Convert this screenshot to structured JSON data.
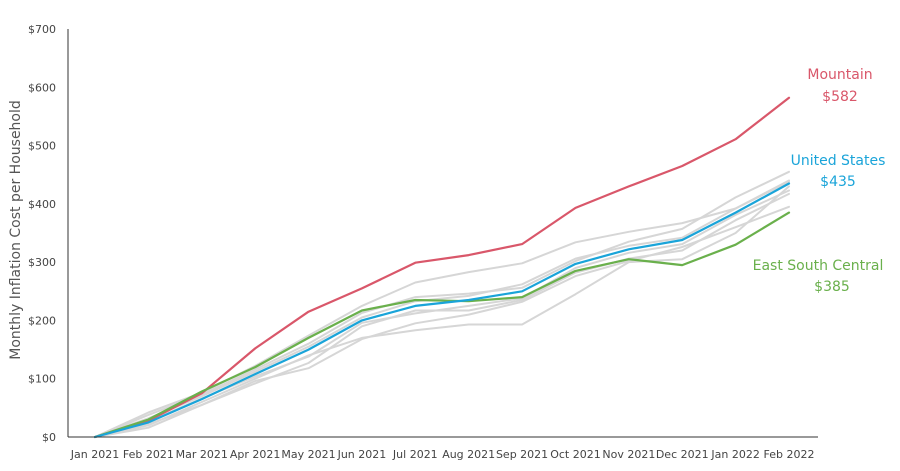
{
  "chart_data": {
    "type": "line",
    "title": "",
    "xlabel": "",
    "ylabel": "Monthly Inflation Cost per Household",
    "ylim": [
      0,
      700
    ],
    "yticks": [
      0,
      100,
      200,
      300,
      400,
      500,
      600,
      700
    ],
    "ytick_labels": [
      "$0",
      "$100",
      "$200",
      "$300",
      "$400",
      "$500",
      "$600",
      "$700"
    ],
    "grid": false,
    "categories": [
      "Jan 2021",
      "Feb 2021",
      "Mar 2021",
      "Apr 2021",
      "May 2021",
      "Jun 2021",
      "Jul 2021",
      "Aug 2021",
      "Sep 2021",
      "Oct 2021",
      "Nov 2021",
      "Dec 2021",
      "Jan 2022",
      "Feb 2022"
    ],
    "colors": {
      "mountain": "#d9576a",
      "united_states": "#1aa4d9",
      "east_south_central": "#6ab04c",
      "other_regions": "#d6d6d6",
      "axis": "#333333"
    },
    "highlighted": [
      {
        "key": "mountain",
        "label_name": "Mountain",
        "label_value": "$582",
        "values": [
          0,
          28,
          75,
          152,
          215,
          255,
          299,
          312,
          331,
          393,
          430,
          465,
          511,
          582
        ]
      },
      {
        "key": "united_states",
        "label_name": "United States",
        "label_value": "$435",
        "values": [
          0,
          25,
          65,
          108,
          150,
          200,
          225,
          235,
          250,
          297,
          322,
          338,
          385,
          435
        ]
      },
      {
        "key": "east_south_central",
        "label_name": "East South Central",
        "label_value": "$385",
        "values": [
          0,
          30,
          78,
          120,
          170,
          217,
          235,
          233,
          240,
          285,
          305,
          295,
          330,
          385
        ]
      }
    ],
    "other_series": [
      {
        "values": [
          0,
          38,
          73,
          116,
          160,
          213,
          240,
          246,
          256,
          302,
          335,
          357,
          411,
          455
        ]
      },
      {
        "values": [
          0,
          42,
          76,
          122,
          174,
          225,
          265,
          283,
          298,
          334,
          352,
          367,
          392,
          440
        ]
      },
      {
        "values": [
          0,
          32,
          70,
          112,
          155,
          205,
          233,
          242,
          262,
          306,
          328,
          342,
          392,
          438
        ]
      },
      {
        "values": [
          0,
          22,
          55,
          92,
          127,
          190,
          217,
          217,
          235,
          282,
          306,
          320,
          372,
          417
        ]
      },
      {
        "values": [
          0,
          16,
          55,
          96,
          118,
          168,
          195,
          210,
          232,
          276,
          302,
          326,
          360,
          395
        ]
      },
      {
        "values": [
          0,
          20,
          60,
          100,
          140,
          170,
          183,
          193,
          193,
          245,
          300,
          305,
          350,
          430
        ]
      },
      {
        "values": [
          0,
          27,
          66,
          104,
          138,
          196,
          212,
          225,
          238,
          290,
          316,
          331,
          381,
          423
        ]
      }
    ]
  }
}
